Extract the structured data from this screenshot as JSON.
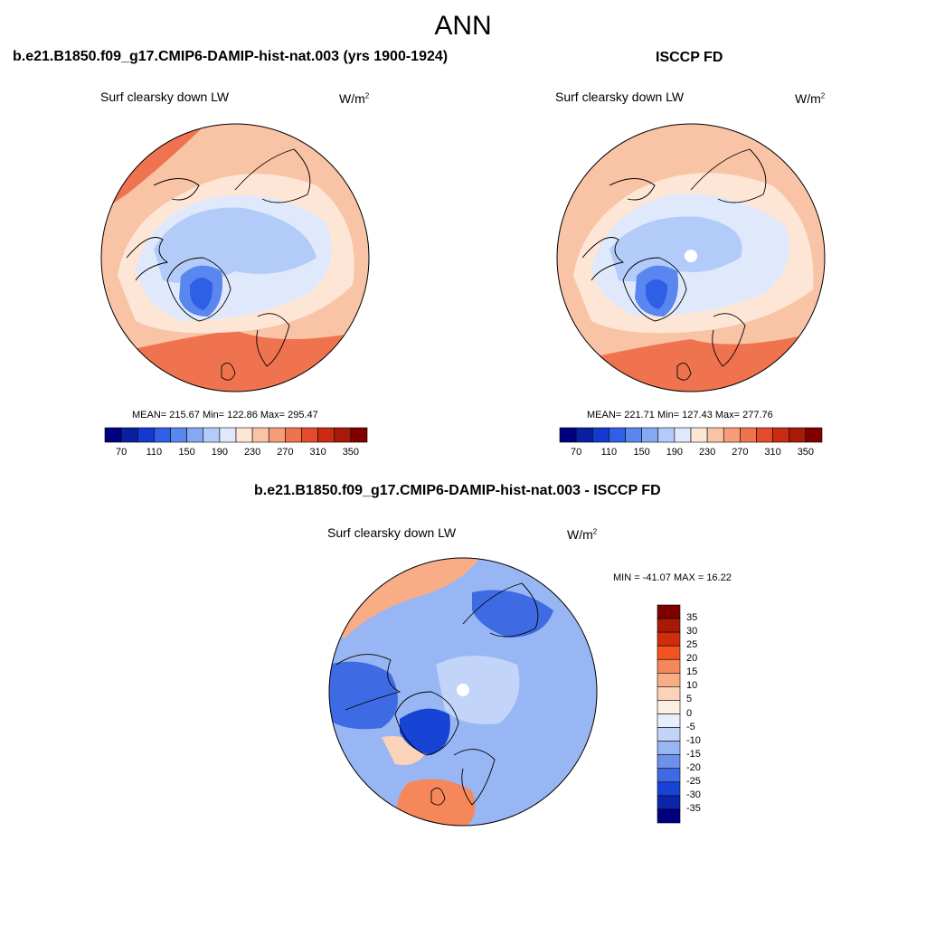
{
  "title": "ANN",
  "panels": {
    "model": {
      "title": "b.e21.B1850.f09_g17.CMIP6-DAMIP-hist-nat.003 (yrs 1900-1924)",
      "variable": "Surf clearsky down LW",
      "units_base": "W/m",
      "units_exp": "2",
      "stats": "MEAN= 215.67  Min= 122.86  Max= 295.47"
    },
    "obs": {
      "title": "ISCCP FD",
      "variable": "Surf clearsky down LW",
      "units_base": "W/m",
      "units_exp": "2",
      "stats": "MEAN= 221.71  Min= 127.43  Max= 277.76"
    },
    "diff": {
      "title": "b.e21.B1850.f09_g17.CMIP6-DAMIP-hist-nat.003 - ISCCP FD",
      "variable": "Surf clearsky down LW",
      "units_base": "W/m",
      "units_exp": "2",
      "stats": "MIN = -41.07 MAX =  16.22"
    }
  },
  "colorbar_main": {
    "colors": [
      "#00007f",
      "#0a1fa0",
      "#1438d0",
      "#2f5fe6",
      "#5a86ef",
      "#86a8f3",
      "#b3cbf8",
      "#dfe9fb",
      "#fde6d5",
      "#f9c3a5",
      "#f59c78",
      "#f0734f",
      "#e54a2b",
      "#c92b12",
      "#a71a08",
      "#800000"
    ],
    "labels": [
      "70",
      "110",
      "150",
      "190",
      "230",
      "270",
      "310",
      "350"
    ]
  },
  "colorbar_diff": {
    "colors": [
      "#800000",
      "#a71a08",
      "#d02d0c",
      "#f2531f",
      "#f5875a",
      "#f8ad87",
      "#fbd3b8",
      "#fdeee2",
      "#e6eefc",
      "#c2d5f8",
      "#98b6f3",
      "#6b91ec",
      "#3e6be3",
      "#1744d4",
      "#0a25a8",
      "#00007f"
    ],
    "labels": [
      "35",
      "30",
      "25",
      "20",
      "15",
      "10",
      "5",
      "0",
      "-5",
      "-10",
      "-15",
      "-20",
      "-25",
      "-30",
      "-35"
    ]
  }
}
